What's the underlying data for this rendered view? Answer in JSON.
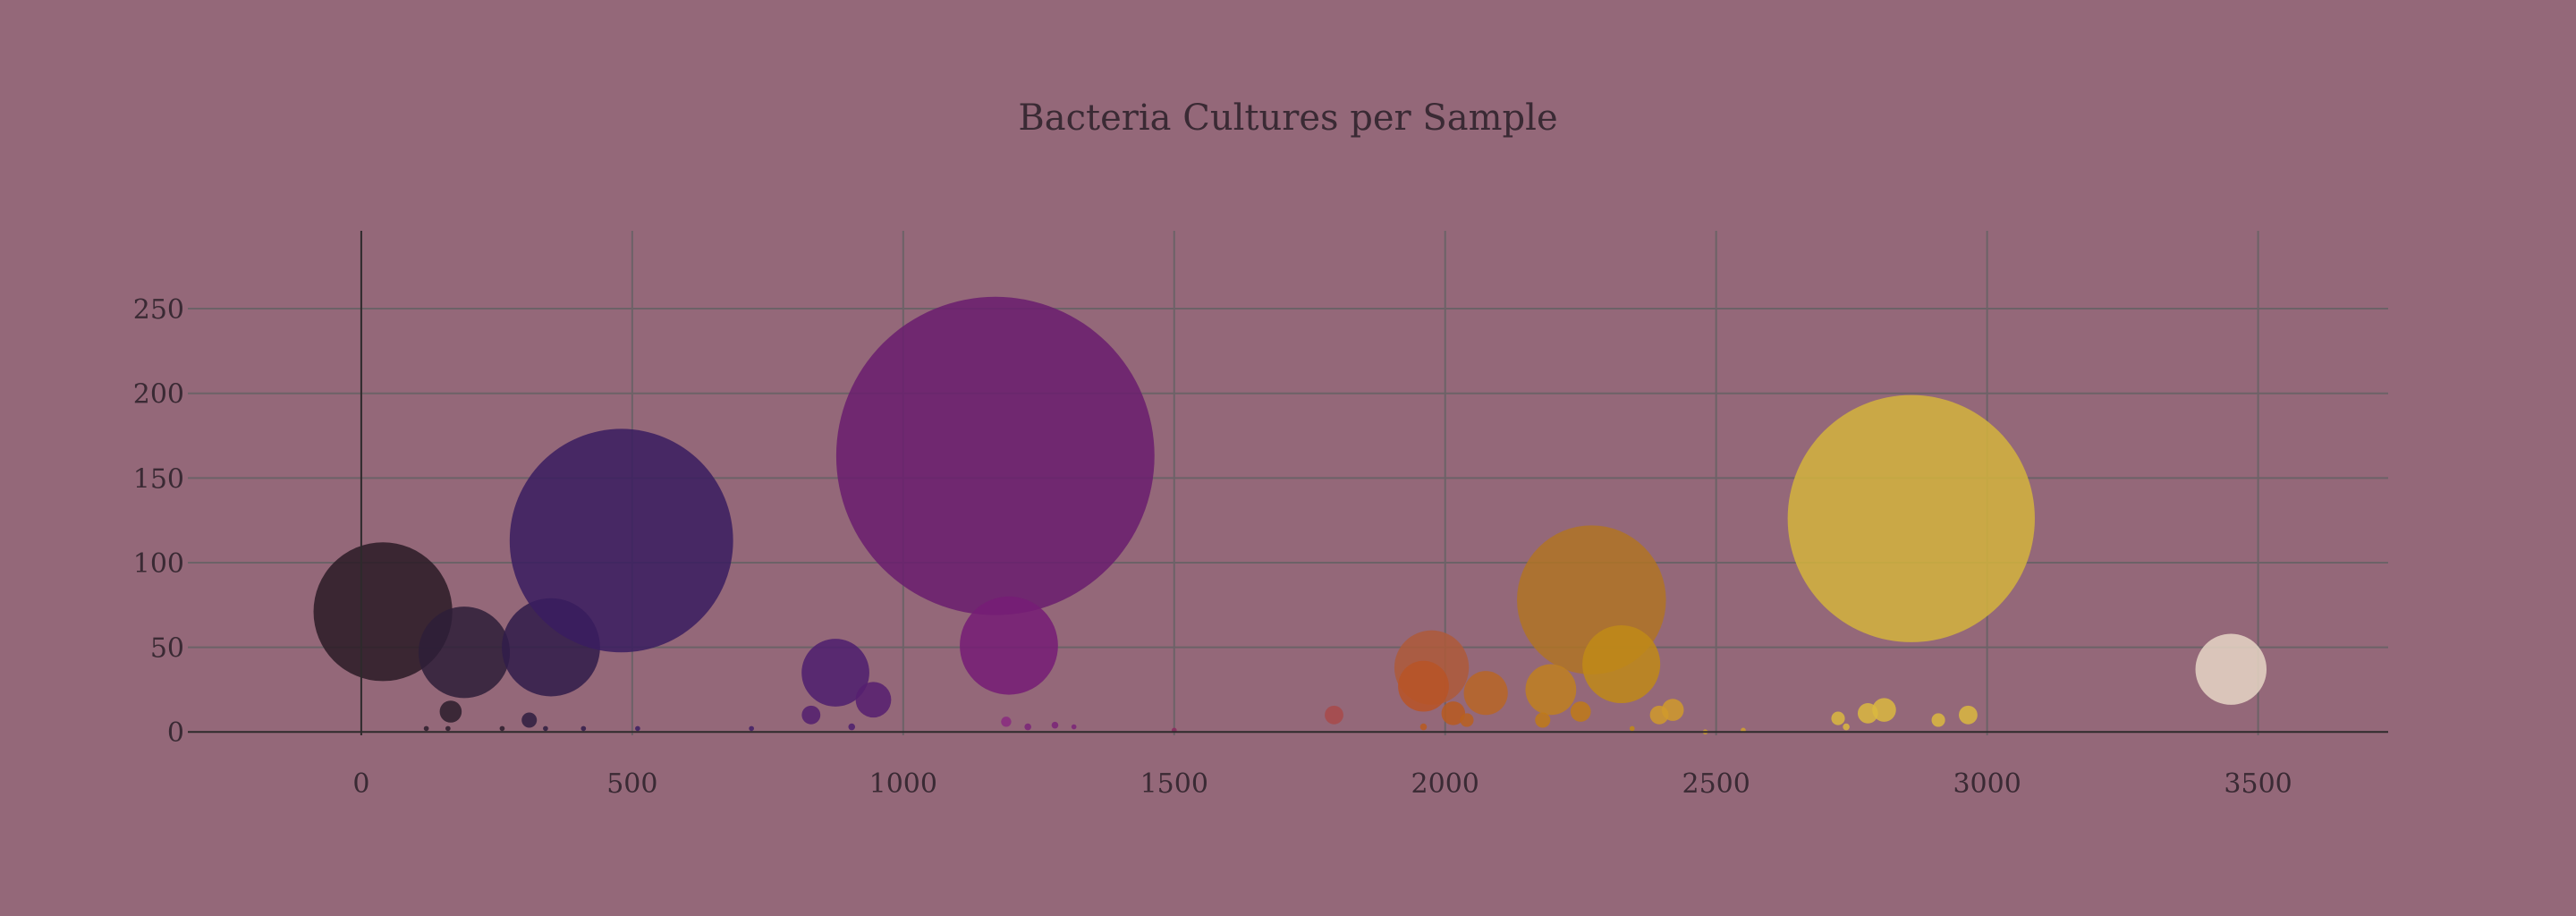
{
  "chart_data": {
    "type": "scatter",
    "title": "Bacteria Cultures per Sample",
    "xlabel": "",
    "ylabel": "",
    "xlim": [
      -320,
      3740
    ],
    "ylim": [
      -2,
      296
    ],
    "grid": true,
    "x_ticks": [
      0,
      500,
      1000,
      1500,
      2000,
      2500,
      3000,
      3500
    ],
    "y_ticks": [
      0,
      50,
      100,
      150,
      200,
      250
    ],
    "colors": {
      "background": "#946879",
      "grid": "#6c6267",
      "zero_line": "#2e2a2c",
      "text": "#3a2a34"
    },
    "points": [
      {
        "x": 40,
        "y": 71,
        "size": 41,
        "color": "#2a1b26"
      },
      {
        "x": 190,
        "y": 47,
        "size": 27,
        "color": "#2e1e38"
      },
      {
        "x": 350,
        "y": 50,
        "size": 29,
        "color": "#301c4a"
      },
      {
        "x": 480,
        "y": 113,
        "size": 66,
        "color": "#3a1d60"
      },
      {
        "x": 165,
        "y": 12,
        "size": 6.5,
        "color": "#2b1d2b"
      },
      {
        "x": 310,
        "y": 7,
        "size": 4.5,
        "color": "#2e1d40"
      },
      {
        "x": 120,
        "y": 2,
        "size": 1.5,
        "color": "#2b1d2b"
      },
      {
        "x": 160,
        "y": 2,
        "size": 1.5,
        "color": "#2b1d2b"
      },
      {
        "x": 260,
        "y": 2,
        "size": 1.5,
        "color": "#2b1d2b"
      },
      {
        "x": 340,
        "y": 2,
        "size": 1.5,
        "color": "#2e1d40"
      },
      {
        "x": 410,
        "y": 2,
        "size": 1.5,
        "color": "#301c4a"
      },
      {
        "x": 510,
        "y": 2,
        "size": 1.5,
        "color": "#3a1d60"
      },
      {
        "x": 720,
        "y": 2,
        "size": 1.5,
        "color": "#421e66"
      },
      {
        "x": 875,
        "y": 35,
        "size": 20,
        "color": "#4e1f6e"
      },
      {
        "x": 945,
        "y": 19,
        "size": 10.5,
        "color": "#561f70"
      },
      {
        "x": 830,
        "y": 10,
        "size": 5.5,
        "color": "#521e6e"
      },
      {
        "x": 905,
        "y": 3,
        "size": 2,
        "color": "#4e1f6e"
      },
      {
        "x": 1170,
        "y": 163,
        "size": 94,
        "color": "#6a1d6e"
      },
      {
        "x": 1195,
        "y": 51,
        "size": 29,
        "color": "#751c76"
      },
      {
        "x": 1190,
        "y": 6,
        "size": 3,
        "color": "#8a2a80"
      },
      {
        "x": 1230,
        "y": 3,
        "size": 2,
        "color": "#7a2478"
      },
      {
        "x": 1280,
        "y": 4,
        "size": 2,
        "color": "#7a2478"
      },
      {
        "x": 1315,
        "y": 3,
        "size": 1.5,
        "color": "#7a2478"
      },
      {
        "x": 1500,
        "y": 1,
        "size": 1.5,
        "color": "#8a2c5e"
      },
      {
        "x": 1795,
        "y": 10,
        "size": 5.5,
        "color": "#a84a4a"
      },
      {
        "x": 1975,
        "y": 38,
        "size": 22,
        "color": "#ae5a3a"
      },
      {
        "x": 1960,
        "y": 27,
        "size": 15,
        "color": "#b85426"
      },
      {
        "x": 2075,
        "y": 23,
        "size": 13,
        "color": "#b86626"
      },
      {
        "x": 2015,
        "y": 11,
        "size": 7,
        "color": "#b85a20"
      },
      {
        "x": 2040,
        "y": 7,
        "size": 4,
        "color": "#b86020"
      },
      {
        "x": 1960,
        "y": 3,
        "size": 2,
        "color": "#b85a20"
      },
      {
        "x": 2270,
        "y": 78,
        "size": 44,
        "color": "#b07424"
      },
      {
        "x": 2325,
        "y": 40,
        "size": 23,
        "color": "#c08a18"
      },
      {
        "x": 2195,
        "y": 25,
        "size": 15,
        "color": "#c08020"
      },
      {
        "x": 2250,
        "y": 12,
        "size": 6,
        "color": "#c07a18"
      },
      {
        "x": 2180,
        "y": 7,
        "size": 4.5,
        "color": "#c07a18"
      },
      {
        "x": 2420,
        "y": 13,
        "size": 6.5,
        "color": "#d09a2c"
      },
      {
        "x": 2395,
        "y": 10,
        "size": 5.5,
        "color": "#d09a2c"
      },
      {
        "x": 2345,
        "y": 2,
        "size": 1.5,
        "color": "#c08a18"
      },
      {
        "x": 2480,
        "y": 0,
        "size": 1.5,
        "color": "#d0a030"
      },
      {
        "x": 2550,
        "y": 1,
        "size": 1.5,
        "color": "#d0a030"
      },
      {
        "x": 2860,
        "y": 126,
        "size": 73,
        "color": "#d3b43d"
      },
      {
        "x": 2810,
        "y": 13,
        "size": 7,
        "color": "#dab840"
      },
      {
        "x": 2780,
        "y": 11,
        "size": 6,
        "color": "#dab840"
      },
      {
        "x": 2725,
        "y": 8,
        "size": 4,
        "color": "#dab840"
      },
      {
        "x": 2965,
        "y": 10,
        "size": 5.5,
        "color": "#dab840"
      },
      {
        "x": 2910,
        "y": 7,
        "size": 4,
        "color": "#dab840"
      },
      {
        "x": 2740,
        "y": 3,
        "size": 2,
        "color": "#dab840"
      },
      {
        "x": 3450,
        "y": 37,
        "size": 21,
        "color": "#e6d6c6"
      }
    ]
  }
}
